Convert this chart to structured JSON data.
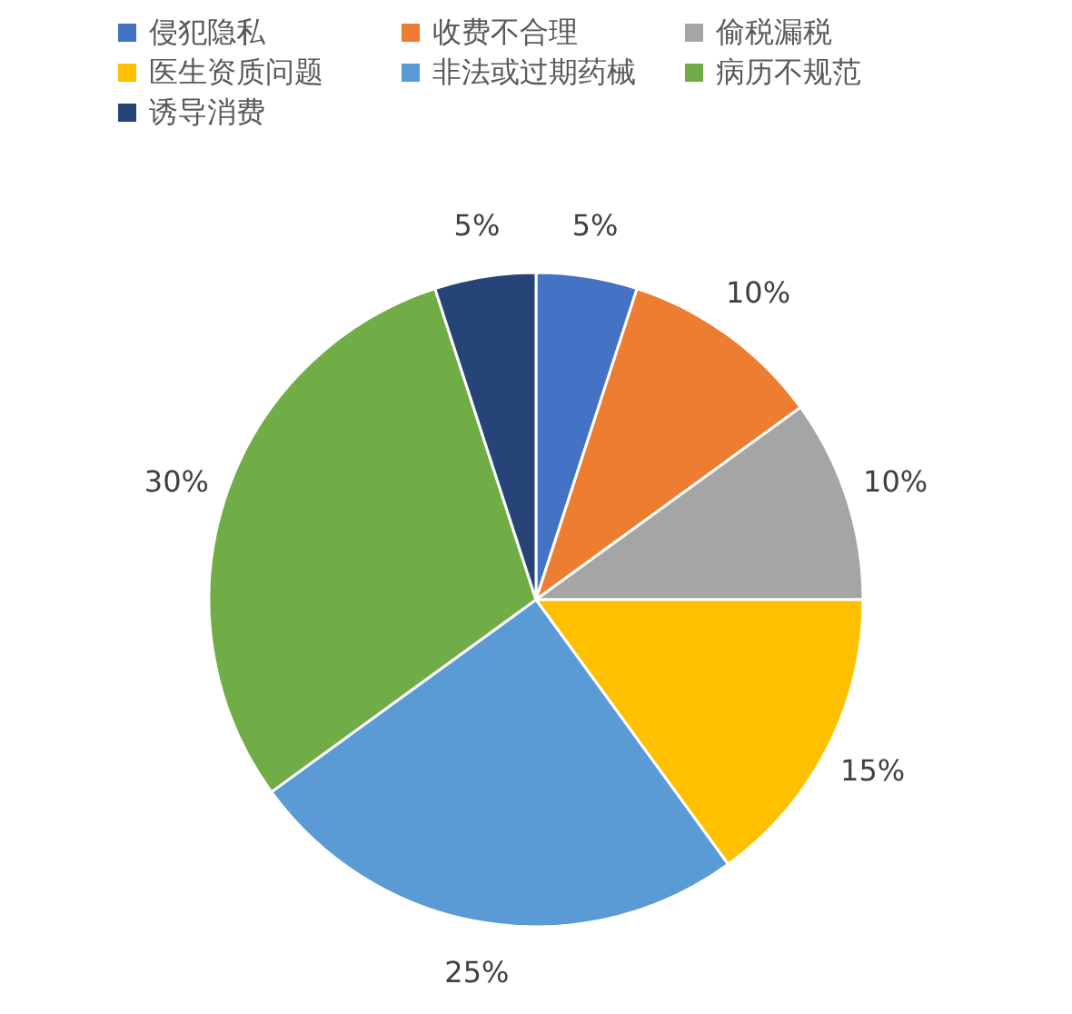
{
  "chart_data": {
    "type": "pie",
    "categories": [
      "侵犯隐私",
      "收费不合理",
      "偷税漏税",
      "医生资质问题",
      "非法或过期药械",
      "病历不规范",
      "诱导消费"
    ],
    "values": [
      5,
      10,
      10,
      15,
      25,
      30,
      5
    ],
    "colors": [
      "#4472c4",
      "#ed7d31",
      "#a5a5a5",
      "#ffc000",
      "#5b9bd5",
      "#70ad47",
      "#264478"
    ],
    "value_labels": [
      "5%",
      "10%",
      "10%",
      "15%",
      "25%",
      "30%",
      "5%"
    ],
    "legend": "top"
  }
}
